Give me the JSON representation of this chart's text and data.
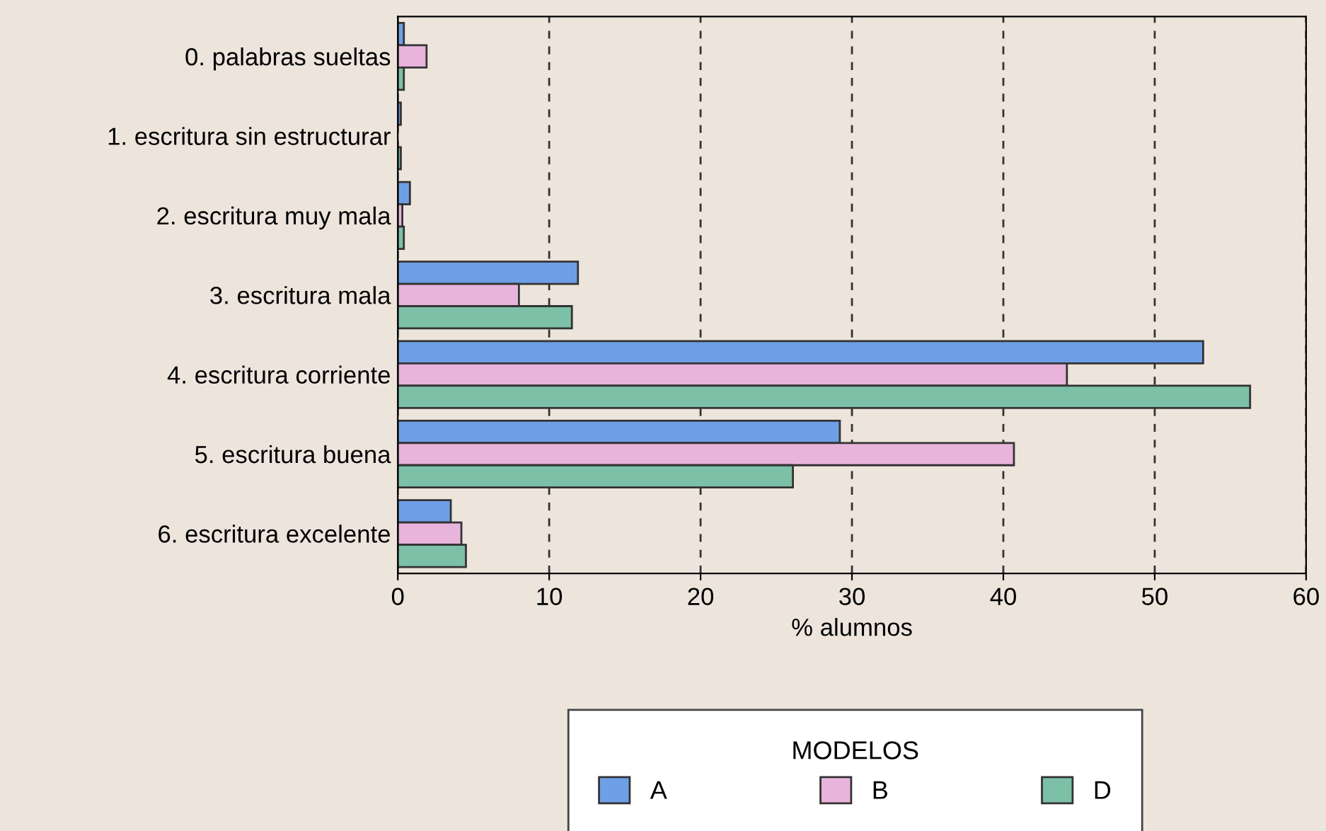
{
  "chart_data": {
    "type": "bar",
    "orientation": "horizontal",
    "xlabel": "% alumnos",
    "legend_title": "MODELOS",
    "legend": "bottom",
    "grid": "x",
    "categories": [
      "0. palabras sueltas",
      "1. escritura sin estructurar",
      "2. escritura muy mala",
      "3. escritura mala",
      "4. escritura corriente",
      "5. escritura buena",
      "6. escritura excelente"
    ],
    "series": [
      {
        "name": "A",
        "color": "#6e9fe6",
        "values": [
          0.4,
          0.2,
          0.8,
          11.9,
          53.2,
          29.2,
          3.5
        ]
      },
      {
        "name": "B",
        "color": "#e8b4dc",
        "values": [
          1.9,
          null,
          0.3,
          8.0,
          44.2,
          40.7,
          4.2
        ]
      },
      {
        "name": "D",
        "color": "#7cc0a8",
        "values": [
          0.4,
          0.2,
          0.4,
          11.5,
          56.3,
          26.1,
          4.5
        ]
      }
    ],
    "xlim": [
      0,
      60
    ],
    "xticks": [
      0,
      10,
      20,
      30,
      40,
      50,
      60
    ]
  }
}
